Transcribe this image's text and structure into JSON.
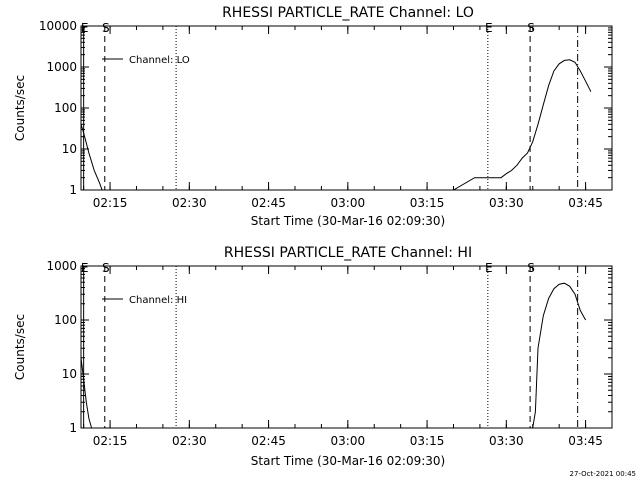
{
  "chart_data": [
    {
      "type": "line",
      "title": "RHESSI PARTICLE_RATE Channel: LO",
      "xlabel": "Start Time (30-Mar-16 02:09:30)",
      "ylabel": "Counts/sec",
      "y_scale": "log",
      "ylim": [
        1,
        10000
      ],
      "xlim": [
        "02:09:30",
        "03:50:00"
      ],
      "x_ticks": [
        "02:15",
        "02:30",
        "02:45",
        "03:00",
        "03:15",
        "03:30",
        "03:45"
      ],
      "y_ticks": [
        "1",
        "10",
        "100",
        "1000",
        "10000"
      ],
      "legend": [
        {
          "label": "Channel: LO",
          "style": "solid"
        }
      ],
      "markers": [
        {
          "label": "E",
          "time": "02:10:00",
          "style": "solid"
        },
        {
          "label": "S",
          "time": "02:14:00",
          "style": "dashed"
        },
        {
          "label": "",
          "time": "02:27:30",
          "style": "dotted"
        },
        {
          "label": "E",
          "time": "03:26:30",
          "style": "dotted"
        },
        {
          "label": "S",
          "time": "03:34:30",
          "style": "dashed"
        },
        {
          "label": "",
          "time": "03:43:30",
          "style": "dashdot"
        }
      ],
      "series": [
        {
          "name": "Channel: LO",
          "x": [
            "02:09:30",
            "02:10:00",
            "02:11:00",
            "02:12:00",
            "02:13:00",
            "02:13:30",
            "02:14:00",
            "02:15:00",
            "02:20:00",
            "02:23:00",
            "02:25:00",
            "02:28:00",
            "02:29:00",
            "02:30:00",
            "02:35:00",
            "02:40:00",
            "02:45:00",
            "02:50:00",
            "02:55:00",
            "03:00:00",
            "03:05:00",
            "03:10:00",
            "03:15:00",
            "03:20:00",
            "03:24:00",
            "03:26:00",
            "03:27:00",
            "03:28:00",
            "03:29:00",
            "03:30:00",
            "03:31:00",
            "03:32:00",
            "03:33:00",
            "03:34:00",
            "03:35:00",
            "03:36:00",
            "03:37:00",
            "03:38:00",
            "03:39:00",
            "03:40:00",
            "03:41:00",
            "03:42:00",
            "03:43:00",
            "03:44:00",
            "03:45:00",
            "03:46:00"
          ],
          "values": [
            40,
            25,
            8,
            3,
            1.5,
            1,
            1,
            1,
            1,
            1,
            1,
            1,
            1,
            1,
            1,
            1,
            1,
            1,
            1,
            1,
            1,
            1,
            1,
            1,
            2,
            2,
            2,
            2,
            2,
            2.5,
            3,
            4,
            6,
            8,
            15,
            40,
            120,
            350,
            800,
            1200,
            1450,
            1500,
            1300,
            800,
            450,
            250
          ]
        }
      ]
    },
    {
      "type": "line",
      "title": "RHESSI PARTICLE_RATE Channel: HI",
      "xlabel": "Start Time (30-Mar-16 02:09:30)",
      "ylabel": "Counts/sec",
      "y_scale": "log",
      "ylim": [
        1,
        1000
      ],
      "xlim": [
        "02:09:30",
        "03:50:00"
      ],
      "x_ticks": [
        "02:15",
        "02:30",
        "02:45",
        "03:00",
        "03:15",
        "03:30",
        "03:45"
      ],
      "y_ticks": [
        "1",
        "10",
        "100",
        "1000"
      ],
      "legend": [
        {
          "label": "Channel: HI",
          "style": "solid"
        }
      ],
      "markers": [
        {
          "label": "E",
          "time": "02:10:00",
          "style": "solid"
        },
        {
          "label": "S",
          "time": "02:14:00",
          "style": "dashed"
        },
        {
          "label": "",
          "time": "02:27:30",
          "style": "dotted"
        },
        {
          "label": "E",
          "time": "03:26:30",
          "style": "dotted"
        },
        {
          "label": "S",
          "time": "03:34:30",
          "style": "dashed"
        },
        {
          "label": "",
          "time": "03:43:30",
          "style": "dashdot"
        }
      ],
      "series": [
        {
          "name": "Channel: HI",
          "x": [
            "02:09:30",
            "02:10:00",
            "02:10:30",
            "02:11:00",
            "02:11:30",
            "03:35:00",
            "03:35:30",
            "03:36:00",
            "03:37:00",
            "03:38:00",
            "03:39:00",
            "03:40:00",
            "03:41:00",
            "03:42:00",
            "03:43:00",
            "03:44:00",
            "03:45:00"
          ],
          "values": [
            20,
            8,
            3,
            1.5,
            1,
            1,
            2,
            30,
            120,
            250,
            380,
            460,
            480,
            420,
            300,
            150,
            100
          ]
        }
      ]
    }
  ],
  "footer": {
    "timestamp": "27-Oct-2021 00:45"
  }
}
